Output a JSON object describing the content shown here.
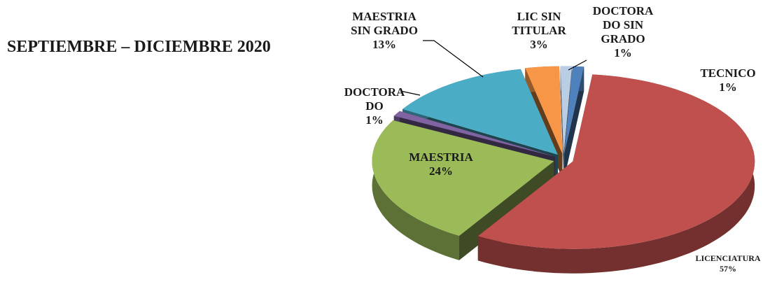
{
  "chart_data": {
    "type": "pie",
    "title": "SEPTIEMBRE – DICIEMBRE 2020",
    "categories": [
      "DOCTORA DO SIN GRADO",
      "TECNICO",
      "LICENCIATURA",
      "MAESTRIA",
      "DOCTORA DO",
      "MAESTRIA SIN GRADO",
      "LIC  SIN TITULAR"
    ],
    "values": [
      1,
      1,
      57,
      24,
      1,
      13,
      3
    ],
    "value_labels": [
      "1%",
      "1%",
      "57%",
      "24%",
      "1%",
      "13%",
      "3%"
    ],
    "colors": [
      "#b9cde5",
      "#4f81bd",
      "#c0504d",
      "#9bbb59",
      "#8064a2",
      "#4bacc6",
      "#f79646"
    ]
  }
}
